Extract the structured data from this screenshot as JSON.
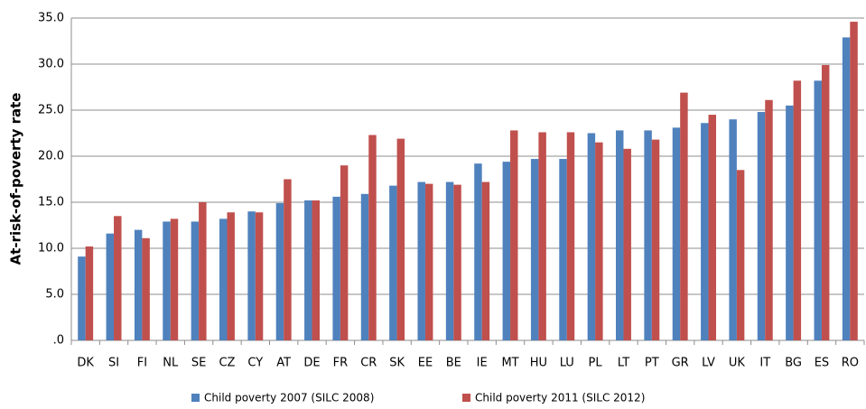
{
  "chart_data": {
    "type": "bar",
    "ylabel": "At-risk-of-poverty rate",
    "categories": [
      "DK",
      "SI",
      "FI",
      "NL",
      "SE",
      "CZ",
      "CY",
      "AT",
      "DE",
      "FR",
      "CR",
      "SK",
      "EE",
      "BE",
      "IE",
      "MT",
      "HU",
      "LU",
      "PL",
      "LT",
      "PT",
      "GR",
      "LV",
      "UK",
      "IT",
      "BG",
      "ES",
      "RO"
    ],
    "series": [
      {
        "name": "Child poverty 2007 (SILC 2008)",
        "color": "#4f81bd",
        "values": [
          9.1,
          11.6,
          12.0,
          12.9,
          12.9,
          13.2,
          14.0,
          14.9,
          15.2,
          15.6,
          15.9,
          16.8,
          17.2,
          17.2,
          19.2,
          19.4,
          19.7,
          19.7,
          22.5,
          22.8,
          22.8,
          23.1,
          23.6,
          24.0,
          24.8,
          25.5,
          28.2,
          32.9
        ]
      },
      {
        "name": "Child poverty 2011 (SILC 2012)",
        "color": "#c0504d",
        "values": [
          10.2,
          13.5,
          11.1,
          13.2,
          15.0,
          13.9,
          13.9,
          17.5,
          15.2,
          19.0,
          22.3,
          21.9,
          17.0,
          16.9,
          17.2,
          22.8,
          22.6,
          22.6,
          21.5,
          20.8,
          21.8,
          26.9,
          24.5,
          18.5,
          26.1,
          28.2,
          29.9,
          34.6
        ]
      }
    ],
    "ylim": [
      0,
      35
    ],
    "yticks": [
      {
        "value": 0,
        "label": ".0"
      },
      {
        "value": 5,
        "label": "5.0"
      },
      {
        "value": 10,
        "label": "10.0"
      },
      {
        "value": 15,
        "label": "15.0"
      },
      {
        "value": 20,
        "label": "20.0"
      },
      {
        "value": 25,
        "label": "25.0"
      },
      {
        "value": 30,
        "label": "30.0"
      },
      {
        "value": 35,
        "label": "35.0"
      }
    ],
    "grid": true,
    "legend": "bottom"
  }
}
